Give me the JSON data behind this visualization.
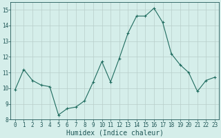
{
  "x": [
    0,
    1,
    2,
    3,
    4,
    5,
    6,
    7,
    8,
    9,
    10,
    11,
    12,
    13,
    14,
    15,
    16,
    17,
    18,
    19,
    20,
    21,
    22,
    23
  ],
  "y": [
    9.9,
    11.2,
    10.5,
    10.2,
    10.1,
    8.3,
    8.7,
    8.8,
    9.2,
    10.4,
    11.7,
    10.4,
    11.9,
    13.5,
    14.6,
    14.6,
    15.1,
    14.2,
    12.2,
    11.5,
    11.0,
    9.8,
    10.5,
    10.7
  ],
  "line_color": "#1e6b5e",
  "marker_color": "#1e6b5e",
  "bg_color": "#d5eeea",
  "grid_color": "#b8cdc9",
  "xlabel": "Humidex (Indice chaleur)",
  "xlim": [
    -0.5,
    23.5
  ],
  "ylim": [
    8,
    15.5
  ],
  "yticks": [
    8,
    9,
    10,
    11,
    12,
    13,
    14,
    15
  ],
  "xticks": [
    0,
    1,
    2,
    3,
    4,
    5,
    6,
    7,
    8,
    9,
    10,
    11,
    12,
    13,
    14,
    15,
    16,
    17,
    18,
    19,
    20,
    21,
    22,
    23
  ],
  "tick_color": "#1e5555",
  "font_size": 5.5,
  "xlabel_fontsize": 7.0
}
